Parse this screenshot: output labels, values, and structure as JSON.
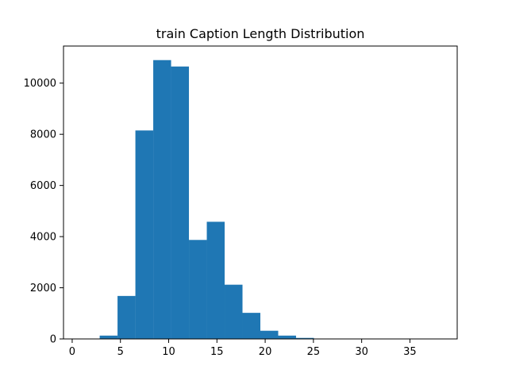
{
  "chart_data": {
    "type": "bar",
    "title": "train Caption Length Distribution",
    "xlabel": "",
    "ylabel": "",
    "xlim": [
      -0.9,
      39.9
    ],
    "ylim": [
      0,
      11450
    ],
    "x_ticks": [
      0,
      5,
      10,
      15,
      20,
      25,
      30,
      35
    ],
    "y_ticks": [
      0,
      2000,
      4000,
      6000,
      8000,
      10000
    ],
    "bar_color": "#1f77b4",
    "grid": false,
    "bins": [
      {
        "x0": 1.0,
        "x1": 2.85,
        "value": 0
      },
      {
        "x0": 2.85,
        "x1": 4.7,
        "value": 130
      },
      {
        "x0": 4.7,
        "x1": 6.55,
        "value": 1680
      },
      {
        "x0": 6.55,
        "x1": 8.4,
        "value": 8150
      },
      {
        "x0": 8.4,
        "x1": 10.25,
        "value": 10900
      },
      {
        "x0": 10.25,
        "x1": 12.1,
        "value": 10650
      },
      {
        "x0": 12.1,
        "x1": 13.95,
        "value": 3870
      },
      {
        "x0": 13.95,
        "x1": 15.8,
        "value": 4580
      },
      {
        "x0": 15.8,
        "x1": 17.65,
        "value": 2120
      },
      {
        "x0": 17.65,
        "x1": 19.5,
        "value": 1020
      },
      {
        "x0": 19.5,
        "x1": 21.35,
        "value": 320
      },
      {
        "x0": 21.35,
        "x1": 23.2,
        "value": 130
      },
      {
        "x0": 23.2,
        "x1": 25.05,
        "value": 40
      },
      {
        "x0": 25.05,
        "x1": 26.9,
        "value": 10
      },
      {
        "x0": 26.9,
        "x1": 28.75,
        "value": 5
      },
      {
        "x0": 28.75,
        "x1": 30.6,
        "value": 3
      },
      {
        "x0": 30.6,
        "x1": 32.45,
        "value": 2
      },
      {
        "x0": 32.45,
        "x1": 34.3,
        "value": 1
      },
      {
        "x0": 34.3,
        "x1": 36.15,
        "value": 1
      },
      {
        "x0": 36.15,
        "x1": 38.0,
        "value": 1
      }
    ]
  }
}
